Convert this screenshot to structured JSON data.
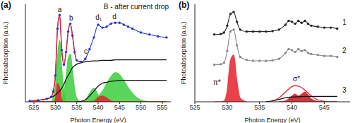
{
  "chart_data": [
    {
      "type": "line",
      "title": "(a)",
      "x_label": "Photon Energy (eV)",
      "y_label": "Photoabsorption (a.u.)",
      "x": [
        524,
        526,
        528,
        529,
        529.5,
        530,
        530.5,
        531,
        531.5,
        532,
        532.5,
        533,
        533.5,
        534,
        534.5,
        535,
        536,
        537,
        538,
        539,
        540,
        541,
        542,
        543,
        544,
        545,
        546,
        547,
        548,
        550,
        552,
        554,
        556
      ],
      "xlim": [
        523,
        557
      ],
      "xticks": [
        525,
        530,
        535,
        540,
        545,
        550,
        555
      ],
      "ylim": [
        0,
        10
      ],
      "tick_labels": "x",
      "annotations": [
        "a",
        "b",
        "c",
        "d₁",
        "d",
        "B - after current drop"
      ],
      "series": [
        {
          "type": "area",
          "color": "#3ccf3c",
          "values": [
            0,
            0,
            0,
            0.05,
            0.5,
            1.7,
            4.7,
            6.3,
            3.5,
            1.0,
            0.2,
            0.03,
            0,
            0,
            0,
            0,
            0,
            0,
            0,
            0,
            0,
            0,
            0,
            0,
            0,
            0,
            0,
            0,
            0,
            0,
            0,
            0,
            0
          ]
        },
        {
          "type": "area",
          "color": "#3ccf3c",
          "values": [
            0,
            0,
            0,
            0,
            0,
            0,
            0,
            0.02,
            0.2,
            1.0,
            2.6,
            4.5,
            4.9,
            3.3,
            1.4,
            0.4,
            0.03,
            0,
            0,
            0,
            0,
            0,
            0,
            0,
            0,
            0,
            0,
            0,
            0,
            0,
            0,
            0,
            0
          ]
        },
        {
          "type": "area",
          "color": "#3ccf3c",
          "values": [
            0,
            0,
            0,
            0,
            0,
            0,
            0,
            0,
            0,
            0,
            0,
            0,
            0,
            0,
            0,
            0,
            0,
            0.2,
            0.9,
            1.4,
            0.7,
            0.15,
            0,
            0,
            0,
            0,
            0,
            0,
            0,
            0,
            0,
            0,
            0
          ]
        },
        {
          "type": "area",
          "color": "#3ccf3c",
          "values": [
            0,
            0,
            0,
            0,
            0,
            0,
            0,
            0,
            0,
            0,
            0,
            0,
            0,
            0,
            0,
            0,
            0,
            0,
            0.1,
            0.25,
            0.6,
            1.1,
            1.9,
            2.6,
            3.0,
            2.8,
            2.2,
            1.5,
            0.9,
            0.2,
            0.03,
            0,
            0
          ]
        },
        {
          "type": "area",
          "color": "#e8202a",
          "values": [
            0,
            0,
            0,
            0,
            0,
            0.3,
            1.9,
            1.5,
            0.2,
            0,
            0,
            0,
            0,
            0,
            0,
            0,
            0,
            0,
            0,
            0,
            0,
            0,
            0,
            0,
            0,
            0,
            0,
            0,
            0,
            0,
            0,
            0,
            0
          ]
        },
        {
          "type": "area",
          "color": "#e8202a",
          "values": [
            0,
            0,
            0,
            0,
            0,
            0,
            0,
            0,
            0,
            0,
            0,
            0,
            0,
            0,
            0,
            0,
            0,
            0,
            0,
            0.05,
            0.45,
            0.6,
            0.4,
            0.1,
            0,
            0,
            0,
            0,
            0,
            0,
            0,
            0,
            0
          ]
        },
        {
          "type": "line",
          "color": "#111111",
          "line_style": "solid",
          "values": [
            0.1,
            0.15,
            0.3,
            0.45,
            0.55,
            0.7,
            0.9,
            1.1,
            1.4,
            1.8,
            2.3,
            2.7,
            3.1,
            3.5,
            3.7,
            3.85,
            4.0,
            4.1,
            4.15,
            4.2,
            4.2,
            4.25,
            4.25,
            4.25,
            4.3,
            4.3,
            4.3,
            4.3,
            4.3,
            4.3,
            4.3,
            4.3,
            4.3
          ]
        },
        {
          "type": "line",
          "color": "#111111",
          "line_style": "solid",
          "values": [
            null,
            null,
            null,
            null,
            null,
            null,
            null,
            null,
            null,
            null,
            null,
            null,
            null,
            null,
            null,
            0,
            0.05,
            0.2,
            0.6,
            1.1,
            1.6,
            1.9,
            2.0,
            2.1,
            2.15,
            2.2,
            2.2,
            2.2,
            2.2,
            2.2,
            2.2,
            2.2,
            2.2
          ]
        },
        {
          "type": "line",
          "color": "#2233cc",
          "marker": "circle",
          "line_style": "solid",
          "values": [
            0.1,
            0.15,
            0.3,
            0.5,
            1.05,
            2.7,
            7.5,
            8.9,
            5.3,
            3.8,
            5.1,
            7.2,
            8.0,
            6.8,
            5.1,
            4.25,
            4.1,
            4.4,
            5.4,
            6.6,
            7.9,
            7.6,
            7.7,
            8.0,
            8.1,
            8.1,
            7.9,
            7.7,
            7.5,
            7.1,
            6.9,
            6.7,
            6.6
          ]
        },
        {
          "type": "line",
          "color": "#e8202a",
          "line_style": "solid",
          "values": [
            0.1,
            0.15,
            0.3,
            0.5,
            1.05,
            2.7,
            7.5,
            8.9,
            5.3,
            3.8,
            5.1,
            7.2,
            8.0,
            6.8,
            5.1,
            4.25,
            4.1,
            null,
            null,
            null,
            null,
            null,
            null,
            null,
            null,
            null,
            null,
            null,
            null,
            null,
            null,
            null,
            null
          ]
        }
      ]
    },
    {
      "type": "line",
      "title": "(b)",
      "x_label": "Photon Energy (eV)",
      "y_label": "Photoabsorption (a.u.)",
      "x": [
        528,
        529,
        529.5,
        530,
        530.5,
        531,
        531.5,
        532,
        533,
        534,
        535,
        536,
        537,
        538,
        539,
        539.5,
        540,
        540.5,
        541,
        541.5,
        542,
        542.5,
        543,
        544,
        545,
        546,
        547
      ],
      "xlim": [
        525,
        549
      ],
      "xticks": [
        525,
        530,
        535,
        540,
        545
      ],
      "ylim": [
        0,
        10
      ],
      "tick_labels": "x",
      "annotations": [
        "1",
        "2",
        "3",
        "π*",
        "σ*"
      ],
      "series": [
        {
          "type": "line",
          "color": "#222222",
          "marker": "circle",
          "line_style": "solid",
          "values": [
            6.9,
            6.95,
            7.1,
            7.8,
            9.0,
            9.2,
            8.2,
            7.4,
            7.2,
            7.2,
            7.2,
            7.2,
            7.25,
            7.4,
            7.9,
            8.3,
            8.2,
            8.0,
            8.3,
            8.1,
            8.3,
            8.0,
            7.8,
            7.7,
            7.6,
            7.6,
            7.5
          ]
        },
        {
          "type": "line",
          "color": "#888888",
          "marker": "circle",
          "line_style": "solid",
          "values": [
            3.8,
            3.85,
            4.0,
            5.2,
            7.2,
            7.4,
            5.8,
            4.6,
            4.3,
            4.2,
            4.2,
            4.2,
            4.25,
            4.4,
            5.0,
            5.4,
            5.3,
            5.1,
            5.4,
            5.2,
            5.3,
            5.0,
            4.9,
            4.8,
            4.7,
            4.7,
            4.6
          ]
        },
        {
          "type": "area",
          "color": "#e8202a",
          "values": [
            0,
            0,
            0.1,
            1.2,
            4.3,
            4.8,
            2.2,
            0.4,
            0,
            null,
            null,
            null,
            null,
            null,
            null,
            null,
            null,
            null,
            null,
            null,
            null,
            null,
            null,
            null,
            null,
            null,
            null
          ]
        },
        {
          "type": "area",
          "color": "#c4141a",
          "values": [
            null,
            null,
            null,
            null,
            null,
            null,
            null,
            null,
            null,
            null,
            null,
            null,
            null,
            0,
            0.1,
            0.3,
            0.6,
            0.8,
            0.6,
            0.8,
            1.0,
            0.7,
            0.3,
            0.05,
            0,
            null,
            null
          ]
        },
        {
          "type": "line",
          "color": "#e8202a",
          "line_style": "solid",
          "values": [
            null,
            null,
            null,
            null,
            null,
            null,
            null,
            null,
            null,
            null,
            null,
            null,
            0.05,
            0.4,
            1.0,
            1.3,
            1.55,
            1.65,
            1.6,
            1.45,
            1.2,
            0.9,
            0.6,
            0.2,
            0.05,
            0,
            0
          ]
        },
        {
          "type": "line",
          "color": "#111111",
          "line_style": "solid",
          "values": [
            null,
            null,
            null,
            null,
            null,
            null,
            null,
            null,
            null,
            null,
            null,
            0,
            0.1,
            0.25,
            0.4,
            0.45,
            0.5,
            0.5,
            0.52,
            0.53,
            0.55,
            0.55,
            0.55,
            0.55,
            0.55,
            0.55,
            0.55
          ]
        }
      ]
    }
  ]
}
